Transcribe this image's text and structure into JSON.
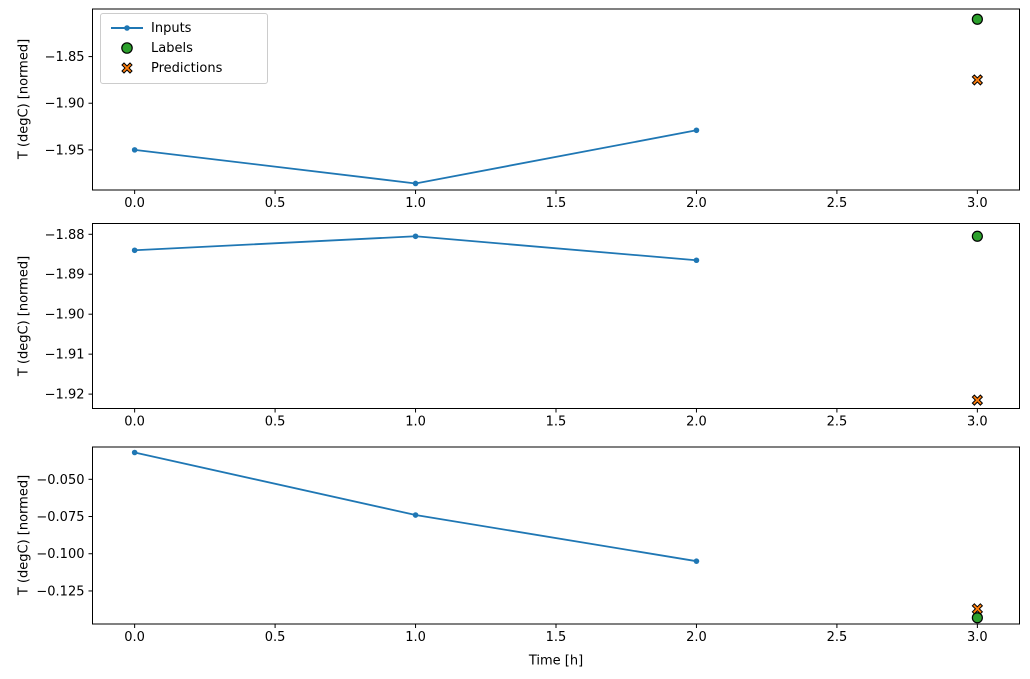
{
  "figure": {
    "title": "",
    "xlabel": "Time [h]",
    "shared_ylabel": "T (degC) [normed]",
    "background": "#ffffff",
    "spine_color": "#000000",
    "legend": {
      "position": "upper left",
      "items": [
        {
          "name": "inputs",
          "label": "Inputs",
          "marker": "line-with-dot",
          "color": "#1f77b4"
        },
        {
          "name": "labels",
          "label": "Labels",
          "marker": "circle",
          "color": "#2ca02c",
          "edge_color": "#000000"
        },
        {
          "name": "predictions",
          "label": "Predictions",
          "marker": "X",
          "color": "#ff7f0e",
          "edge_color": "#000000"
        }
      ]
    }
  },
  "chart_data": [
    {
      "type": "line",
      "title": "",
      "xlabel": "",
      "ylabel": "T (degC) [normed]",
      "grid": false,
      "legend_position": "upper left",
      "xlim": [
        -0.15,
        3.15
      ],
      "ylim": [
        -1.993,
        -1.799
      ],
      "xticks": {
        "values": [
          0,
          0.5,
          1,
          1.5,
          2,
          2.5,
          3
        ],
        "labels": [
          "0.0",
          "0.5",
          "1.0",
          "1.5",
          "2.0",
          "2.5",
          "3.0"
        ]
      },
      "yticks": {
        "values": [
          -1.85,
          -1.9,
          -1.95
        ],
        "labels": [
          "−1.85",
          "−1.90",
          "−1.95"
        ]
      },
      "series": [
        {
          "name": "Inputs",
          "kind": "line-marker",
          "color": "#1f77b4",
          "x": [
            0,
            1,
            2
          ],
          "y": [
            -1.95,
            -1.986,
            -1.929
          ]
        },
        {
          "name": "Labels",
          "kind": "scatter",
          "marker": "circle",
          "color": "#2ca02c",
          "edge_color": "#000000",
          "x": [
            3
          ],
          "y": [
            -1.81
          ]
        },
        {
          "name": "Predictions",
          "kind": "scatter",
          "marker": "X",
          "color": "#ff7f0e",
          "edge_color": "#000000",
          "x": [
            3
          ],
          "y": [
            -1.875
          ]
        }
      ]
    },
    {
      "type": "line",
      "title": "",
      "xlabel": "",
      "ylabel": "T (degC) [normed]",
      "grid": false,
      "xlim": [
        -0.15,
        3.15
      ],
      "ylim": [
        -1.9236,
        -1.8773
      ],
      "xticks": {
        "values": [
          0,
          0.5,
          1,
          1.5,
          2,
          2.5,
          3
        ],
        "labels": [
          "0.0",
          "0.5",
          "1.0",
          "1.5",
          "2.0",
          "2.5",
          "3.0"
        ]
      },
      "yticks": {
        "values": [
          -1.88,
          -1.89,
          -1.9,
          -1.91,
          -1.92
        ],
        "labels": [
          "−1.88",
          "−1.89",
          "−1.90",
          "−1.91",
          "−1.92"
        ]
      },
      "series": [
        {
          "name": "Inputs",
          "kind": "line-marker",
          "color": "#1f77b4",
          "x": [
            0,
            1,
            2
          ],
          "y": [
            -1.884,
            -1.8805,
            -1.8865
          ]
        },
        {
          "name": "Labels",
          "kind": "scatter",
          "marker": "circle",
          "color": "#2ca02c",
          "edge_color": "#000000",
          "x": [
            3
          ],
          "y": [
            -1.8805
          ]
        },
        {
          "name": "Predictions",
          "kind": "scatter",
          "marker": "X",
          "color": "#ff7f0e",
          "edge_color": "#000000",
          "x": [
            3
          ],
          "y": [
            -1.9215
          ]
        }
      ]
    },
    {
      "type": "line",
      "title": "",
      "xlabel": "Time [h]",
      "ylabel": "T (degC) [normed]",
      "grid": false,
      "xlim": [
        -0.15,
        3.15
      ],
      "ylim": [
        -0.1472,
        -0.0283
      ],
      "xticks": {
        "values": [
          0,
          0.5,
          1,
          1.5,
          2,
          2.5,
          3
        ],
        "labels": [
          "0.0",
          "0.5",
          "1.0",
          "1.5",
          "2.0",
          "2.5",
          "3.0"
        ]
      },
      "yticks": {
        "values": [
          -0.05,
          -0.075,
          -0.1,
          -0.125
        ],
        "labels": [
          "−0.050",
          "−0.075",
          "−0.100",
          "−0.125"
        ]
      },
      "series": [
        {
          "name": "Inputs",
          "kind": "line-marker",
          "color": "#1f77b4",
          "x": [
            0,
            1,
            2
          ],
          "y": [
            -0.032,
            -0.074,
            -0.105
          ]
        },
        {
          "name": "Labels",
          "kind": "scatter",
          "marker": "circle",
          "color": "#2ca02c",
          "edge_color": "#000000",
          "x": [
            3
          ],
          "y": [
            -0.143
          ]
        },
        {
          "name": "Predictions",
          "kind": "scatter",
          "marker": "X",
          "color": "#ff7f0e",
          "edge_color": "#000000",
          "x": [
            3
          ],
          "y": [
            -0.137
          ]
        }
      ]
    }
  ]
}
